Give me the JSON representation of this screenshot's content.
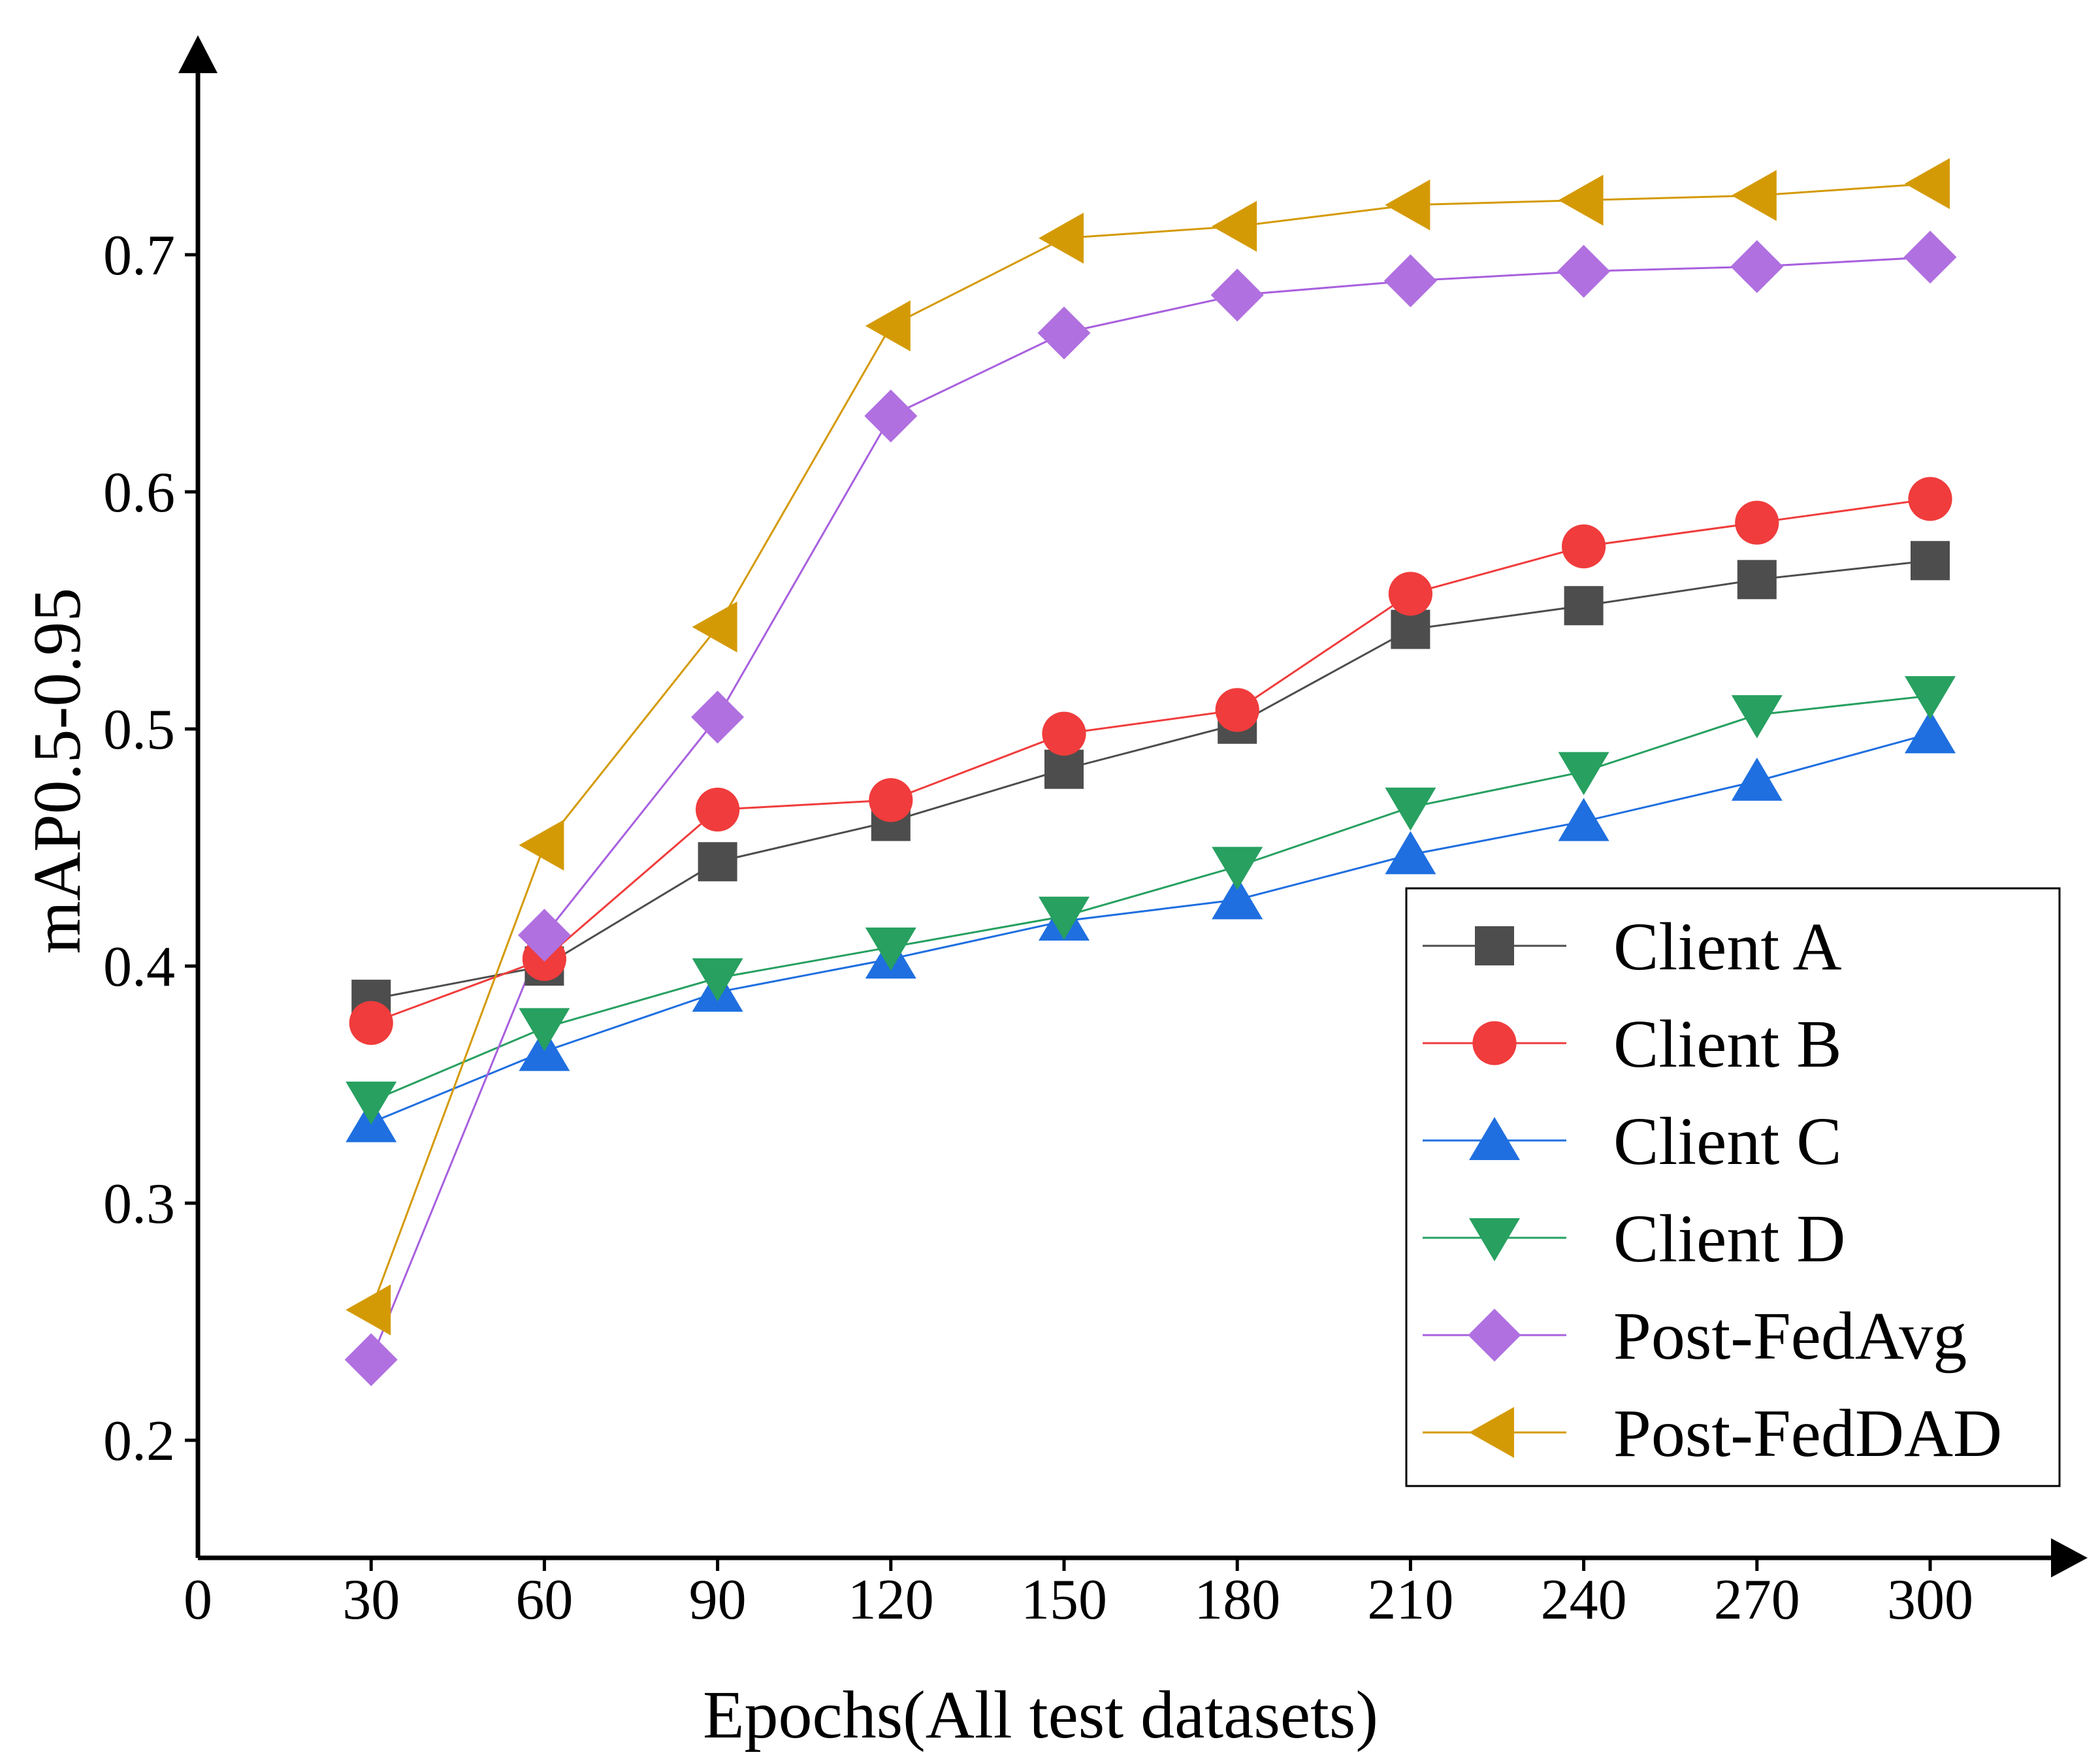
{
  "chart_data": {
    "type": "line",
    "xlabel": "Epochs(All test datasets)",
    "ylabel": "mAP0.5-0.95",
    "xlim": [
      0,
      325
    ],
    "ylim": [
      0.15,
      0.77
    ],
    "xticks": [
      0,
      30,
      60,
      90,
      120,
      150,
      180,
      210,
      240,
      270,
      300
    ],
    "xtick_labels": [
      "0",
      "30",
      "60",
      "90",
      "120",
      "150",
      "180",
      "210",
      "240",
      "270",
      "300"
    ],
    "yticks": [
      0.2,
      0.3,
      0.4,
      0.5,
      0.6,
      0.7
    ],
    "ytick_labels": [
      "0.2",
      "0.3",
      "0.4",
      "0.5",
      "0.6",
      "0.7"
    ],
    "legend_position": "bottom-right",
    "x": [
      30,
      60,
      90,
      120,
      150,
      180,
      210,
      240,
      270,
      300
    ],
    "series": [
      {
        "name": "Client A",
        "color": "#4d4d4d",
        "line_color": "#4d4d4d",
        "marker": "square",
        "values": [
          0.386,
          0.4,
          0.444,
          0.461,
          0.483,
          0.502,
          0.542,
          0.552,
          0.563,
          0.571
        ]
      },
      {
        "name": "Client B",
        "color": "#f03c3c",
        "line_color": "#f03c3c",
        "marker": "circle",
        "values": [
          0.376,
          0.403,
          0.466,
          0.47,
          0.498,
          0.508,
          0.557,
          0.577,
          0.587,
          0.597
        ]
      },
      {
        "name": "Client C",
        "color": "#1f6fe0",
        "line_color": "#1f6fe0",
        "marker": "triangle-up",
        "values": [
          0.334,
          0.364,
          0.389,
          0.403,
          0.419,
          0.428,
          0.447,
          0.461,
          0.478,
          0.498
        ]
      },
      {
        "name": "Client D",
        "color": "#27a060",
        "line_color": "#27a060",
        "marker": "triangle-down",
        "values": [
          0.343,
          0.374,
          0.395,
          0.408,
          0.421,
          0.442,
          0.467,
          0.482,
          0.506,
          0.514
        ]
      },
      {
        "name": "Post-FedAvg",
        "color": "#b070e0",
        "line_color": "#a860de",
        "marker": "diamond",
        "values": [
          0.234,
          0.413,
          0.505,
          0.632,
          0.667,
          0.683,
          0.689,
          0.693,
          0.695,
          0.699
        ]
      },
      {
        "name": "Post-FedDAD",
        "color": "#d49a06",
        "line_color": "#d49a06",
        "marker": "triangle-left",
        "values": [
          0.255,
          0.451,
          0.543,
          0.67,
          0.707,
          0.712,
          0.721,
          0.723,
          0.725,
          0.73
        ]
      }
    ]
  }
}
